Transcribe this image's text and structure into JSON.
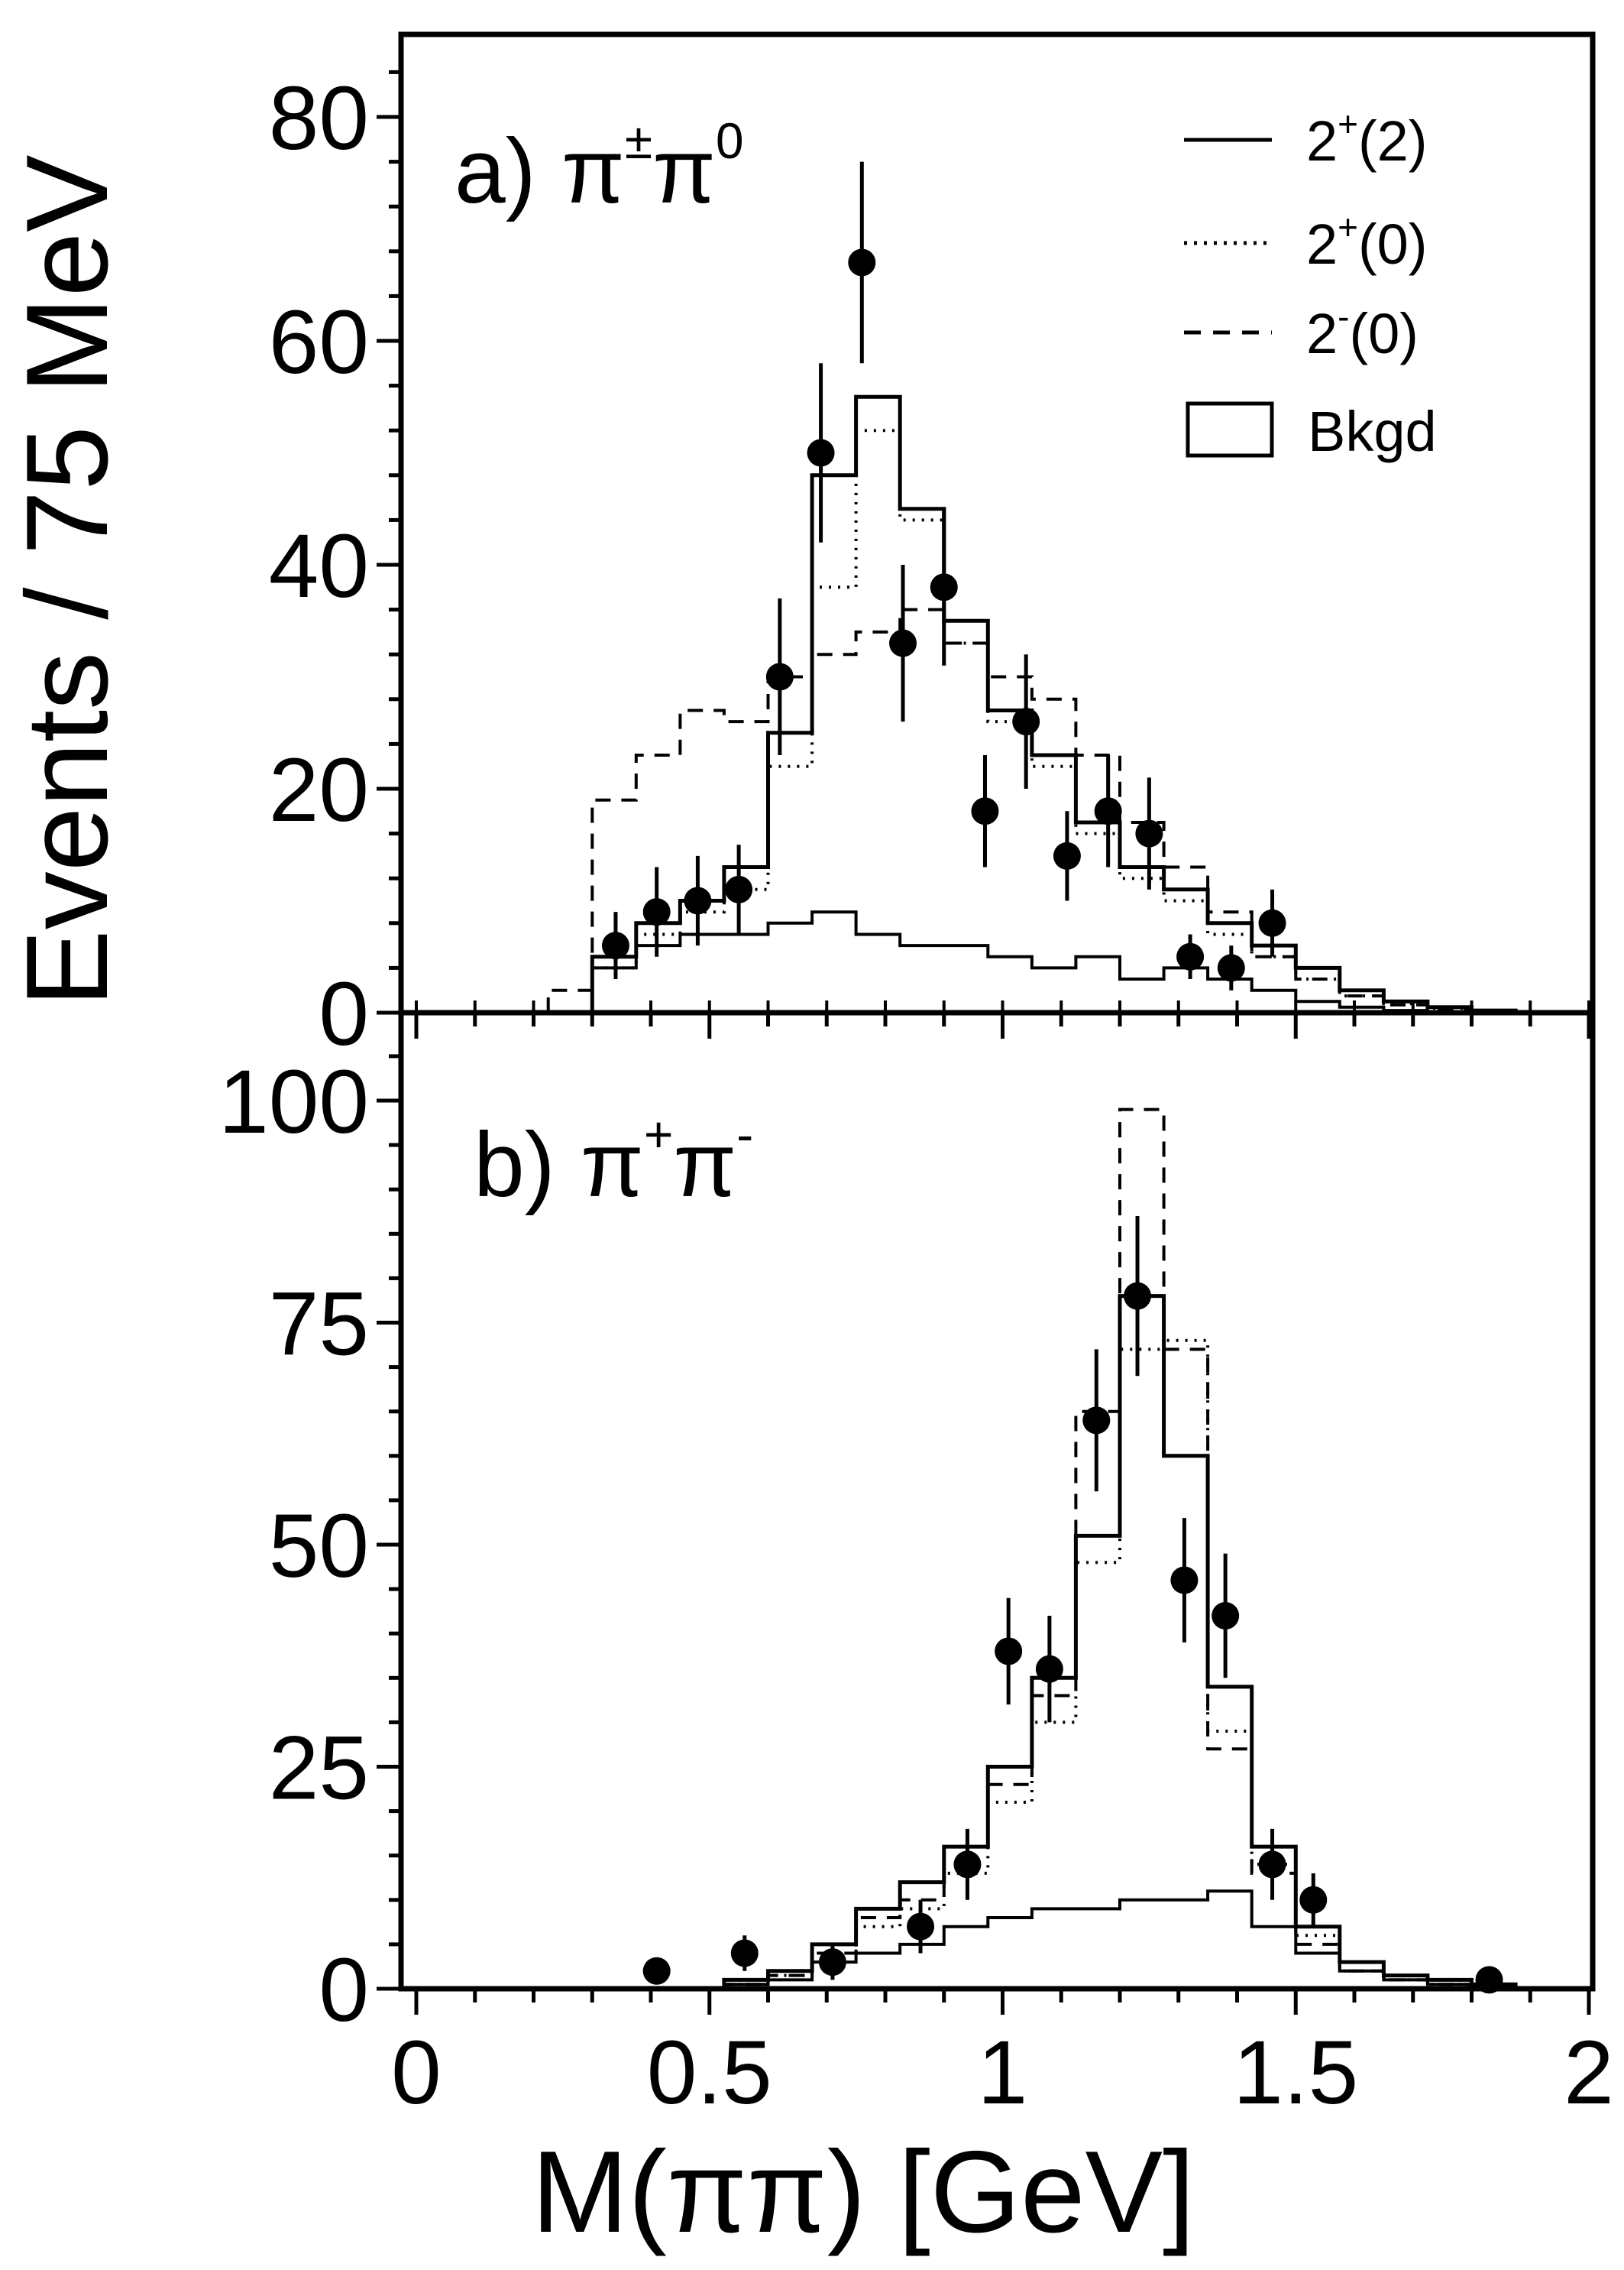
{
  "chart_data": [
    {
      "id": "a",
      "type": "histogram",
      "panel_label": "a) π",
      "panel_label_sup1": "±",
      "panel_label_mid": "π",
      "panel_label_sup2": "0",
      "xlabel": "M(ππ) [GeV]",
      "ylabel": "Events / 75 MeV",
      "xlim": [
        0,
        2
      ],
      "ylim": [
        0,
        90
      ],
      "yticks": [
        0,
        20,
        40,
        60,
        80
      ],
      "ytick_labels": [
        "0",
        "20",
        "40",
        "60",
        "80"
      ],
      "legend": {
        "position": "top-right",
        "entries": [
          {
            "label": "2",
            "sup": "+",
            "rest": "(2)",
            "style": "solid"
          },
          {
            "label": "2",
            "sup": "+",
            "rest": "(0)",
            "style": "dotted"
          },
          {
            "label": "2",
            "sup": "-",
            "rest": "(0)",
            "style": "dashed"
          },
          {
            "label": "Bkgd",
            "style": "box"
          }
        ]
      },
      "bin_edges": [
        0.225,
        0.3,
        0.375,
        0.45,
        0.525,
        0.6,
        0.675,
        0.75,
        0.825,
        0.9,
        0.975,
        1.05,
        1.125,
        1.2,
        1.275,
        1.35,
        1.425,
        1.5,
        1.575,
        1.65,
        1.725,
        1.8,
        1.875
      ],
      "histograms": [
        {
          "name": "2+(2)",
          "style": "solid",
          "values": [
            0,
            5,
            8,
            10,
            13,
            25,
            48,
            55,
            45,
            35,
            27,
            23,
            17,
            13,
            11,
            8,
            6,
            4,
            2,
            1,
            0.5,
            0.2
          ]
        },
        {
          "name": "2+(0)",
          "style": "dotted",
          "values": [
            0,
            4,
            7,
            9,
            11,
            22,
            38,
            52,
            44,
            33,
            26,
            22,
            16,
            12,
            10,
            7,
            5,
            3,
            1.5,
            0.8,
            0.4,
            0.1
          ]
        },
        {
          "name": "2-(0)",
          "style": "dashed",
          "values": [
            2,
            19,
            23,
            27,
            26,
            30,
            32,
            34,
            36,
            33,
            30,
            28,
            23,
            17,
            13,
            9,
            5,
            3,
            1.5,
            0.7,
            0.3,
            0.1
          ]
        },
        {
          "name": "Bkgd",
          "style": "solid-thin",
          "values": [
            0,
            4,
            6,
            7,
            7,
            8,
            9,
            7,
            6,
            6,
            5,
            4,
            5,
            3,
            4,
            3,
            2,
            1,
            0.5,
            0.2,
            0,
            0
          ]
        }
      ],
      "points": [
        {
          "x": 0.34,
          "y": 6,
          "err": 3
        },
        {
          "x": 0.41,
          "y": 9,
          "err": 4
        },
        {
          "x": 0.48,
          "y": 10,
          "err": 4
        },
        {
          "x": 0.55,
          "y": 11,
          "err": 4
        },
        {
          "x": 0.62,
          "y": 30,
          "err": 7
        },
        {
          "x": 0.69,
          "y": 50,
          "err": 8
        },
        {
          "x": 0.76,
          "y": 67,
          "err": 9
        },
        {
          "x": 0.83,
          "y": 33,
          "err": 7
        },
        {
          "x": 0.9,
          "y": 38,
          "err": 7
        },
        {
          "x": 0.97,
          "y": 18,
          "err": 5
        },
        {
          "x": 1.04,
          "y": 26,
          "err": 6
        },
        {
          "x": 1.11,
          "y": 14,
          "err": 4
        },
        {
          "x": 1.18,
          "y": 18,
          "err": 5
        },
        {
          "x": 1.25,
          "y": 16,
          "err": 5
        },
        {
          "x": 1.32,
          "y": 5,
          "err": 2
        },
        {
          "x": 1.39,
          "y": 4,
          "err": 2
        },
        {
          "x": 1.46,
          "y": 8,
          "err": 3
        }
      ]
    },
    {
      "id": "b",
      "type": "histogram",
      "panel_label": "b) π",
      "panel_label_sup1": "+",
      "panel_label_mid": "π",
      "panel_label_sup2": "-",
      "xlabel": "M(ππ) [GeV]",
      "ylim": [
        0,
        110
      ],
      "yticks": [
        0,
        25,
        50,
        75,
        100
      ],
      "ytick_labels": [
        "0",
        "25",
        "50",
        "75",
        "100"
      ],
      "xticks": [
        0,
        0.5,
        1,
        1.5,
        2
      ],
      "xtick_labels": [
        "0",
        "0.5",
        "1",
        "1.5",
        "2"
      ],
      "bin_edges": [
        0.525,
        0.6,
        0.675,
        0.75,
        0.825,
        0.9,
        0.975,
        1.05,
        1.125,
        1.2,
        1.275,
        1.35,
        1.425,
        1.5,
        1.575,
        1.65,
        1.725,
        1.8,
        1.875
      ],
      "histograms": [
        {
          "name": "2+(2)",
          "style": "solid",
          "values": [
            1,
            2,
            5,
            9,
            12,
            16,
            25,
            35,
            51,
            78,
            60,
            34,
            16,
            7,
            3,
            1.5,
            1,
            0.5
          ]
        },
        {
          "name": "2+(0)",
          "style": "dotted",
          "values": [
            0.5,
            1.5,
            4,
            7,
            9,
            13,
            21,
            30,
            48,
            72,
            73,
            29,
            14,
            6,
            2,
            1,
            0.5,
            0.2
          ]
        },
        {
          "name": "2-(0)",
          "style": "dashed",
          "values": [
            0.5,
            1.5,
            4,
            8,
            10,
            16,
            23,
            33,
            65,
            99,
            72,
            27,
            13,
            5,
            2,
            1,
            0.5,
            0.2
          ]
        },
        {
          "name": "Bkgd",
          "style": "solid-thin",
          "values": [
            0.5,
            1,
            3,
            4,
            5,
            7,
            8,
            9,
            9,
            10,
            10,
            11,
            7,
            4,
            2,
            1,
            0.5,
            0.2
          ]
        }
      ],
      "points": [
        {
          "x": 0.41,
          "y": 2,
          "err": 1
        },
        {
          "x": 0.56,
          "y": 4,
          "err": 2
        },
        {
          "x": 0.71,
          "y": 3,
          "err": 2
        },
        {
          "x": 0.86,
          "y": 7,
          "err": 3
        },
        {
          "x": 0.94,
          "y": 14,
          "err": 4
        },
        {
          "x": 1.01,
          "y": 38,
          "err": 6
        },
        {
          "x": 1.08,
          "y": 36,
          "err": 6
        },
        {
          "x": 1.16,
          "y": 64,
          "err": 8
        },
        {
          "x": 1.23,
          "y": 78,
          "err": 9
        },
        {
          "x": 1.31,
          "y": 46,
          "err": 7
        },
        {
          "x": 1.38,
          "y": 42,
          "err": 7
        },
        {
          "x": 1.46,
          "y": 14,
          "err": 4
        },
        {
          "x": 1.53,
          "y": 10,
          "err": 3
        },
        {
          "x": 1.83,
          "y": 1,
          "err": 1
        }
      ]
    }
  ]
}
